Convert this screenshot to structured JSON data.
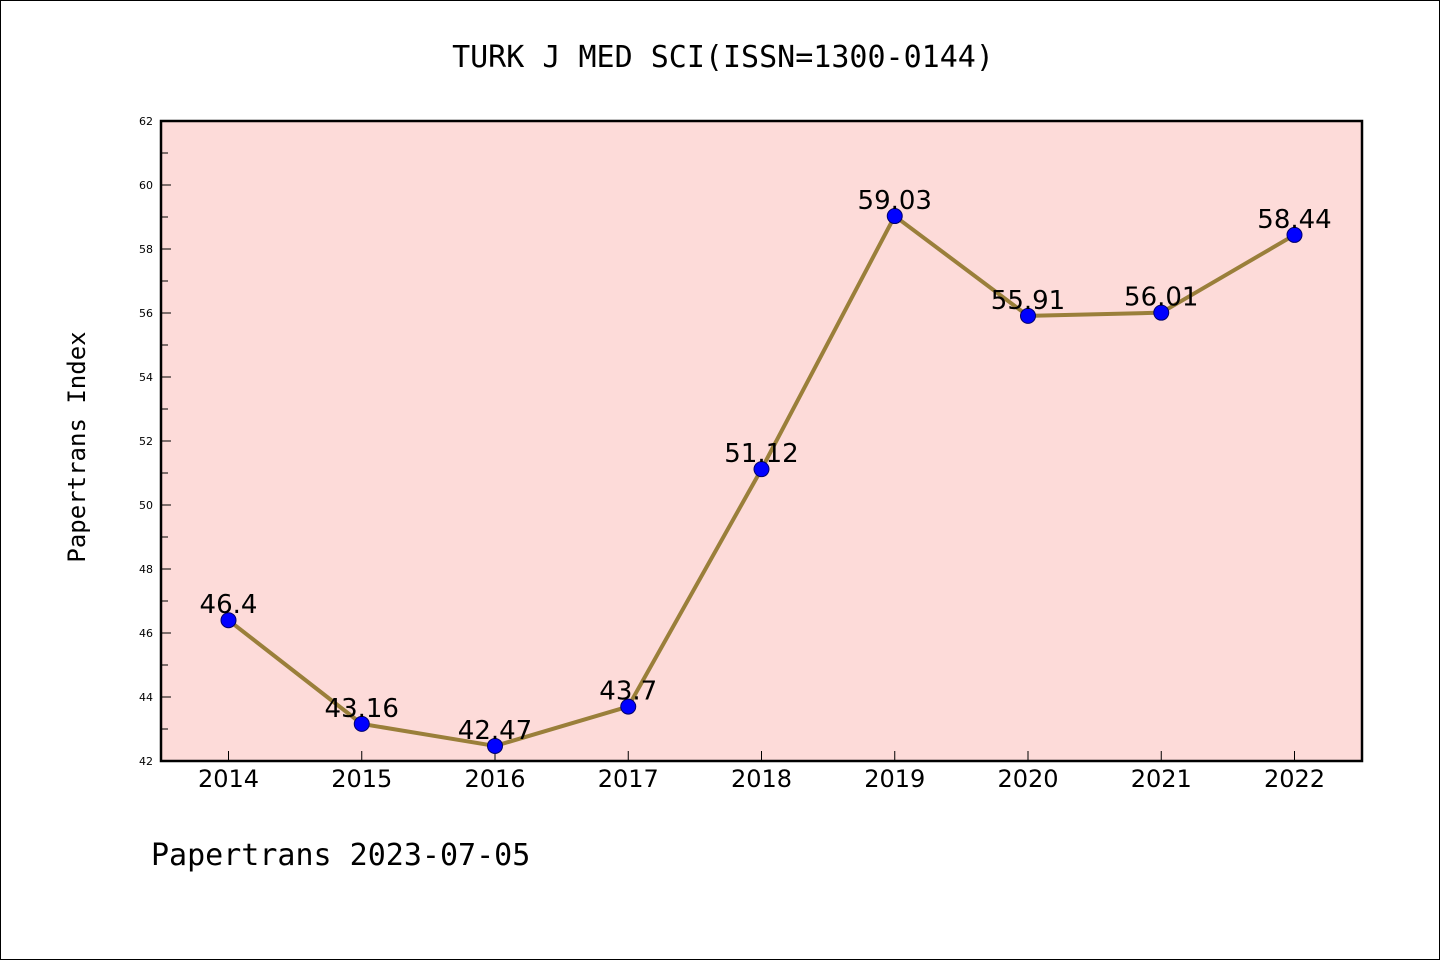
{
  "footer": "Papertrans 2023-07-05",
  "colors": {
    "plot_background": "#fddbd9",
    "line": "#9a7f3a",
    "marker": "#0000ff",
    "axis": "#000000"
  },
  "chart_data": {
    "type": "line",
    "title": "TURK J MED SCI(ISSN=1300-0144)",
    "xlabel": "",
    "ylabel": "Papertrans Index",
    "categories": [
      "2014",
      "2015",
      "2016",
      "2017",
      "2018",
      "2019",
      "2020",
      "2021",
      "2022"
    ],
    "series": [
      {
        "values": [
          46.4,
          43.16,
          42.47,
          43.7,
          51.12,
          59.03,
          55.91,
          56.01,
          58.44
        ],
        "labels": [
          "46.4",
          "43.16",
          "42.47",
          "43.7",
          "51.12",
          "59.03",
          "55.91",
          "56.01",
          "58.44"
        ]
      }
    ],
    "ylim": [
      42,
      62
    ],
    "yticks": [
      "42",
      "44",
      "46",
      "48",
      "50",
      "52",
      "54",
      "56",
      "58",
      "60",
      "62"
    ],
    "grid": false,
    "legend": "none"
  }
}
